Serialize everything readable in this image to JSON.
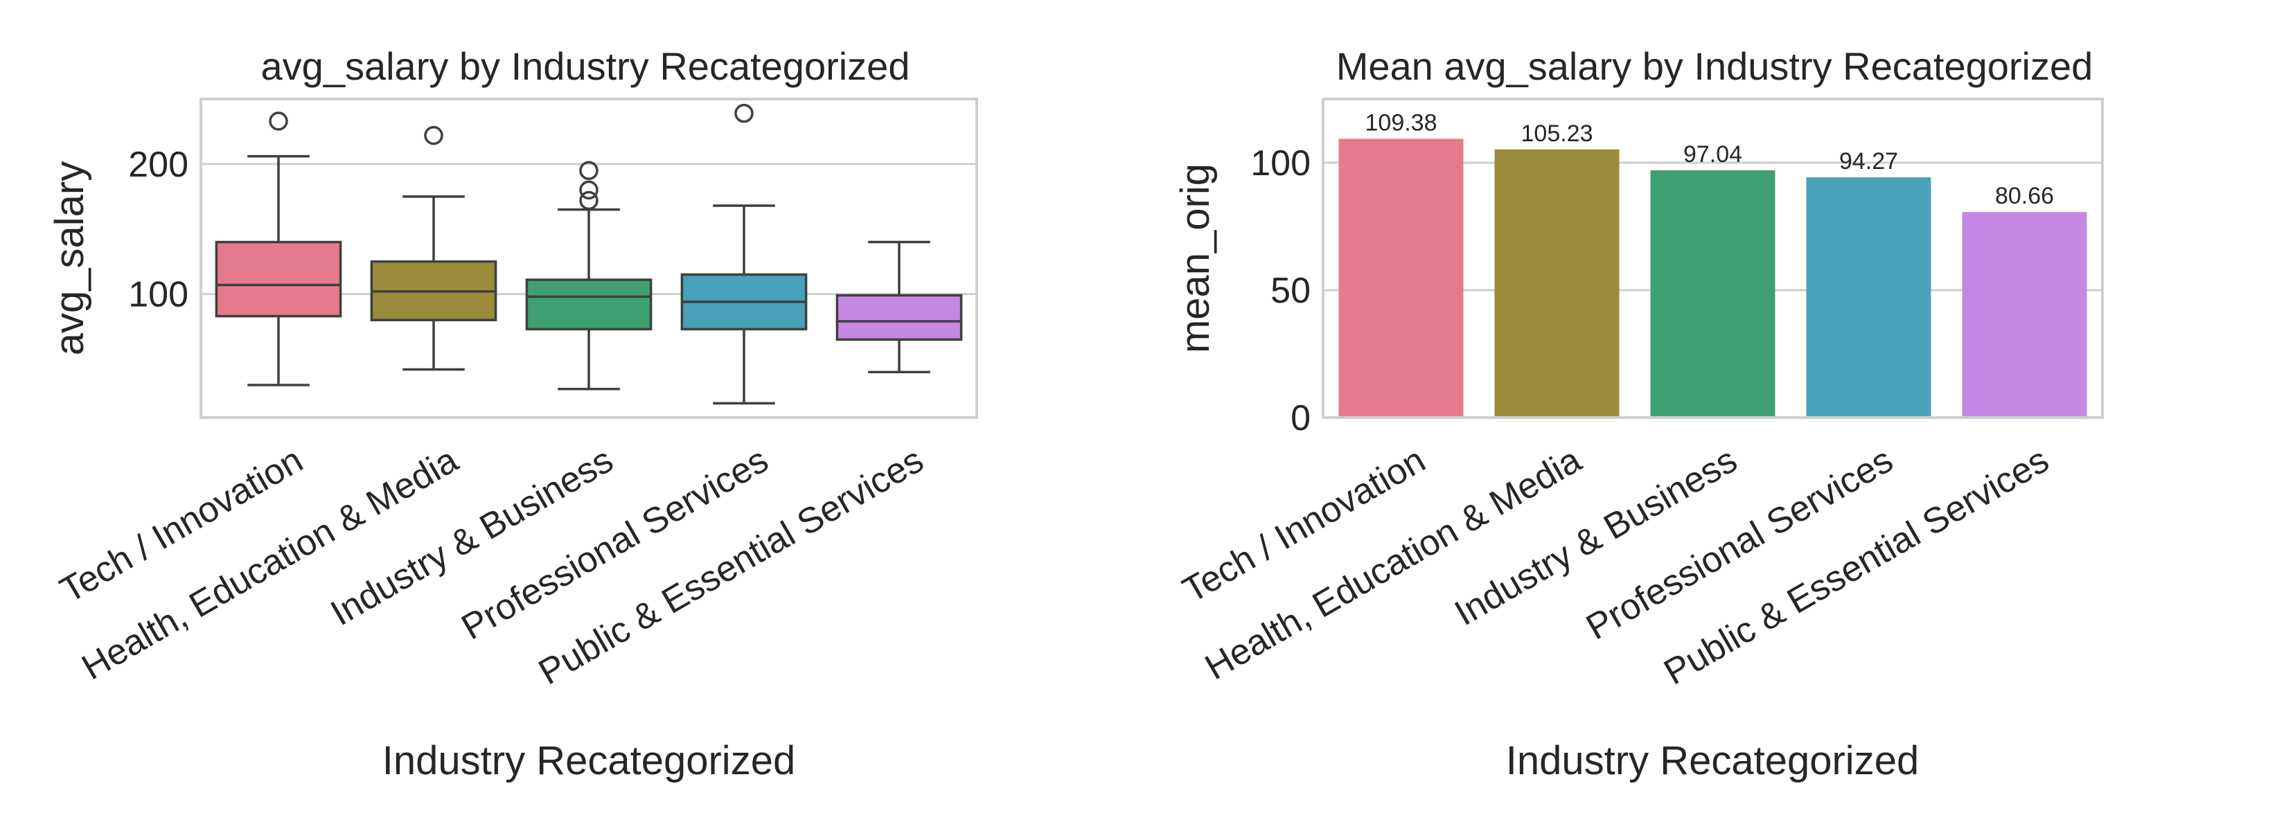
{
  "chart_data": [
    {
      "type": "box",
      "title": "avg_salary by Industry Recategorized",
      "xlabel": "Industry Recategorized",
      "ylabel": "avg_salary",
      "categories": [
        "Tech / Innovation",
        "Health, Education & Media",
        "Industry & Business",
        "Professional Services",
        "Public & Essential Services"
      ],
      "ylim": [
        5,
        250
      ],
      "yticks": [
        100,
        200
      ],
      "grid": true,
      "colors": [
        "#e67a8d",
        "#9a8c3a",
        "#3fa172",
        "#4aa1ba",
        "#c587e3"
      ],
      "boxes": [
        {
          "min": 30,
          "q1": 83,
          "median": 107,
          "q3": 140,
          "max": 206,
          "outliers": [
            233
          ]
        },
        {
          "min": 42,
          "q1": 80,
          "median": 102,
          "q3": 125,
          "max": 175,
          "outliers": [
            222
          ]
        },
        {
          "min": 27,
          "q1": 73,
          "median": 98,
          "q3": 111,
          "max": 165,
          "outliers": [
            172,
            180,
            195
          ]
        },
        {
          "min": 16,
          "q1": 73,
          "median": 94,
          "q3": 115,
          "max": 168,
          "outliers": [
            239
          ]
        },
        {
          "min": 40,
          "q1": 65,
          "median": 79,
          "q3": 99,
          "max": 140,
          "outliers": []
        }
      ]
    },
    {
      "type": "bar",
      "title": "Mean avg_salary by Industry Recategorized",
      "xlabel": "Industry Recategorized",
      "ylabel": "mean_orig",
      "categories": [
        "Tech / Innovation",
        "Health, Education & Media",
        "Industry & Business",
        "Professional Services",
        "Public & Essential Services"
      ],
      "values": [
        109.38,
        105.23,
        97.04,
        94.27,
        80.66
      ],
      "value_labels": [
        "109.38",
        "105.23",
        "97.04",
        "94.27",
        "80.66"
      ],
      "ylim": [
        0,
        125
      ],
      "yticks": [
        0,
        50,
        100
      ],
      "grid": true,
      "colors": [
        "#e67a8d",
        "#9a8c3a",
        "#3fa172",
        "#4aa1ba",
        "#c587e3"
      ]
    }
  ]
}
